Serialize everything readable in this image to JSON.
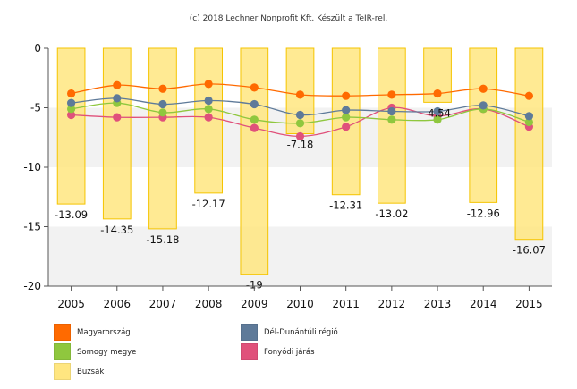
{
  "credit": "(c) 2018 Lechner Nonprofit Kft. Készült a TeIR-rel.",
  "colors": {
    "magyarorszag": "#ff6a00",
    "del_dunantul": "#5e7a99",
    "somogy": "#8fc73e",
    "fonyod": "#e0517b",
    "buzsak_fill": "#ffe680",
    "buzsak_stroke": "#f5c400",
    "grid_band": "#f2f2f2",
    "axis": "#555555"
  },
  "chart_data": {
    "type": "bar",
    "categories": [
      "2005",
      "2006",
      "2007",
      "2008",
      "2009",
      "2010",
      "2011",
      "2012",
      "2013",
      "2014",
      "2015"
    ],
    "ylim": [
      -20,
      0
    ],
    "yticks": [
      "0",
      "-5",
      "-10",
      "-15",
      "-20"
    ],
    "ytick_values": [
      0,
      -5,
      -10,
      -15,
      -20
    ],
    "bar_series": {
      "name": "Buzsák",
      "values": [
        -13.09,
        -14.35,
        -15.18,
        -12.17,
        -19,
        -7.18,
        -12.31,
        -13.02,
        -4.54,
        -12.96,
        -16.07
      ],
      "labels": [
        "-13.09",
        "-14.35",
        "-15.18",
        "-12.17",
        "-19",
        "-7.18",
        "-12.31",
        "-13.02",
        "-4.54",
        "-12.96",
        "-16.07"
      ]
    },
    "line_series": [
      {
        "name": "Magyarország",
        "key": "magyarorszag",
        "values": [
          -3.8,
          -3.1,
          -3.4,
          -3.0,
          -3.3,
          -3.9,
          -4.0,
          -3.9,
          -3.8,
          -3.4,
          -4.0
        ]
      },
      {
        "name": "Dél-Dunántúli régió",
        "key": "del_dunantul",
        "values": [
          -4.6,
          -4.2,
          -4.7,
          -4.4,
          -4.7,
          -5.6,
          -5.2,
          -5.3,
          -5.3,
          -4.8,
          -5.7
        ]
      },
      {
        "name": "Somogy megye",
        "key": "somogy",
        "values": [
          -5.1,
          -4.6,
          -5.4,
          -5.1,
          -6.0,
          -6.3,
          -5.8,
          -6.0,
          -6.0,
          -5.1,
          -6.2
        ]
      },
      {
        "name": "Fonyódi járás",
        "key": "fonyod",
        "values": [
          -5.6,
          -5.8,
          -5.8,
          -5.8,
          -6.7,
          -7.4,
          -6.6,
          -5.0,
          -5.7,
          -5.1,
          -6.6
        ]
      }
    ],
    "legend": [
      {
        "label": "Magyarország",
        "key": "magyarorszag"
      },
      {
        "label": "Dél-Dunántúli régió",
        "key": "del_dunantul"
      },
      {
        "label": "Somogy megye",
        "key": "somogy"
      },
      {
        "label": "Fonyódi járás",
        "key": "fonyod"
      },
      {
        "label": "Buzsák",
        "key": "buzsak_fill"
      }
    ]
  }
}
